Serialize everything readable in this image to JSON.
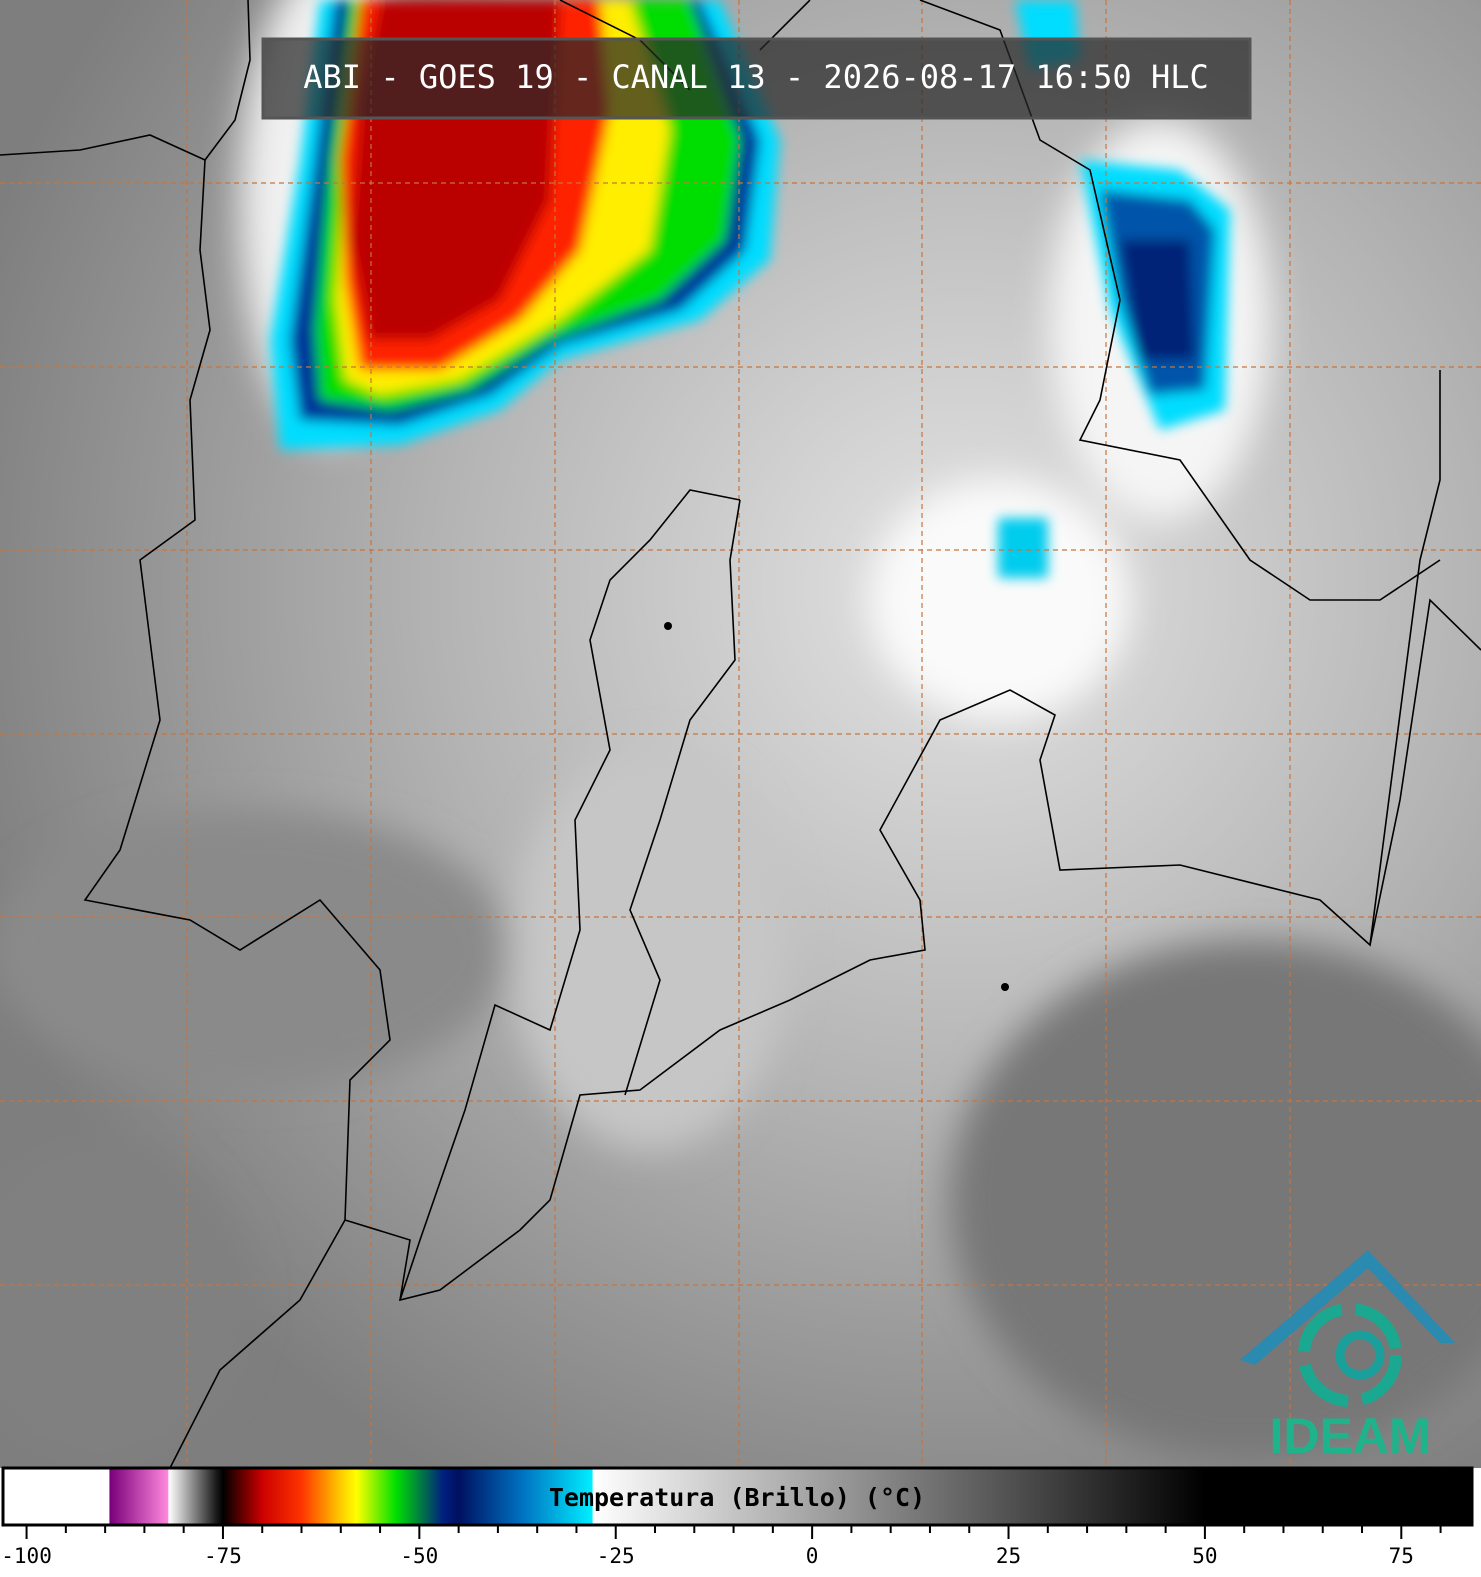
{
  "title": "ABI - GOES 19 - CANAL 13 - 2026-08-17 16:50 HLC",
  "logo_text": "IDEAM",
  "colorbar": {
    "label": "Temperatura (Brillo) (°C)",
    "lim": [
      -103,
      84
    ],
    "ticks": [
      -100,
      -75,
      -50,
      -25,
      0,
      25,
      50,
      75
    ],
    "minor_ticks": [
      -95,
      -90,
      -85,
      -80,
      -70,
      -65,
      -60,
      -55,
      -45,
      -40,
      -35,
      -30,
      -20,
      -15,
      -10,
      -5,
      5,
      10,
      15,
      20,
      30,
      35,
      40,
      45,
      55,
      60,
      65,
      70,
      80
    ],
    "colormap": [
      {
        "value": -103,
        "color": "#ffffff"
      },
      {
        "value": -89.5,
        "color": "#ffffff"
      },
      {
        "value": -89.4,
        "color": "#7a007a"
      },
      {
        "value": -82,
        "color": "#ff88dd"
      },
      {
        "value": -81.9,
        "color": "#ffffff"
      },
      {
        "value": -76,
        "color": "#202020"
      },
      {
        "value": -75,
        "color": "#000000"
      },
      {
        "value": -70,
        "color": "#cc0000"
      },
      {
        "value": -65,
        "color": "#ff3300"
      },
      {
        "value": -60,
        "color": "#ffcc00"
      },
      {
        "value": -58,
        "color": "#ffff00"
      },
      {
        "value": -53,
        "color": "#00e000"
      },
      {
        "value": -47,
        "color": "#002080"
      },
      {
        "value": -45,
        "color": "#001060"
      },
      {
        "value": -37,
        "color": "#0070c0"
      },
      {
        "value": -28,
        "color": "#00eeff"
      },
      {
        "value": -27.9,
        "color": "#ffffff"
      },
      {
        "value": 50,
        "color": "#000000"
      },
      {
        "value": 84,
        "color": "#000000"
      }
    ]
  }
}
